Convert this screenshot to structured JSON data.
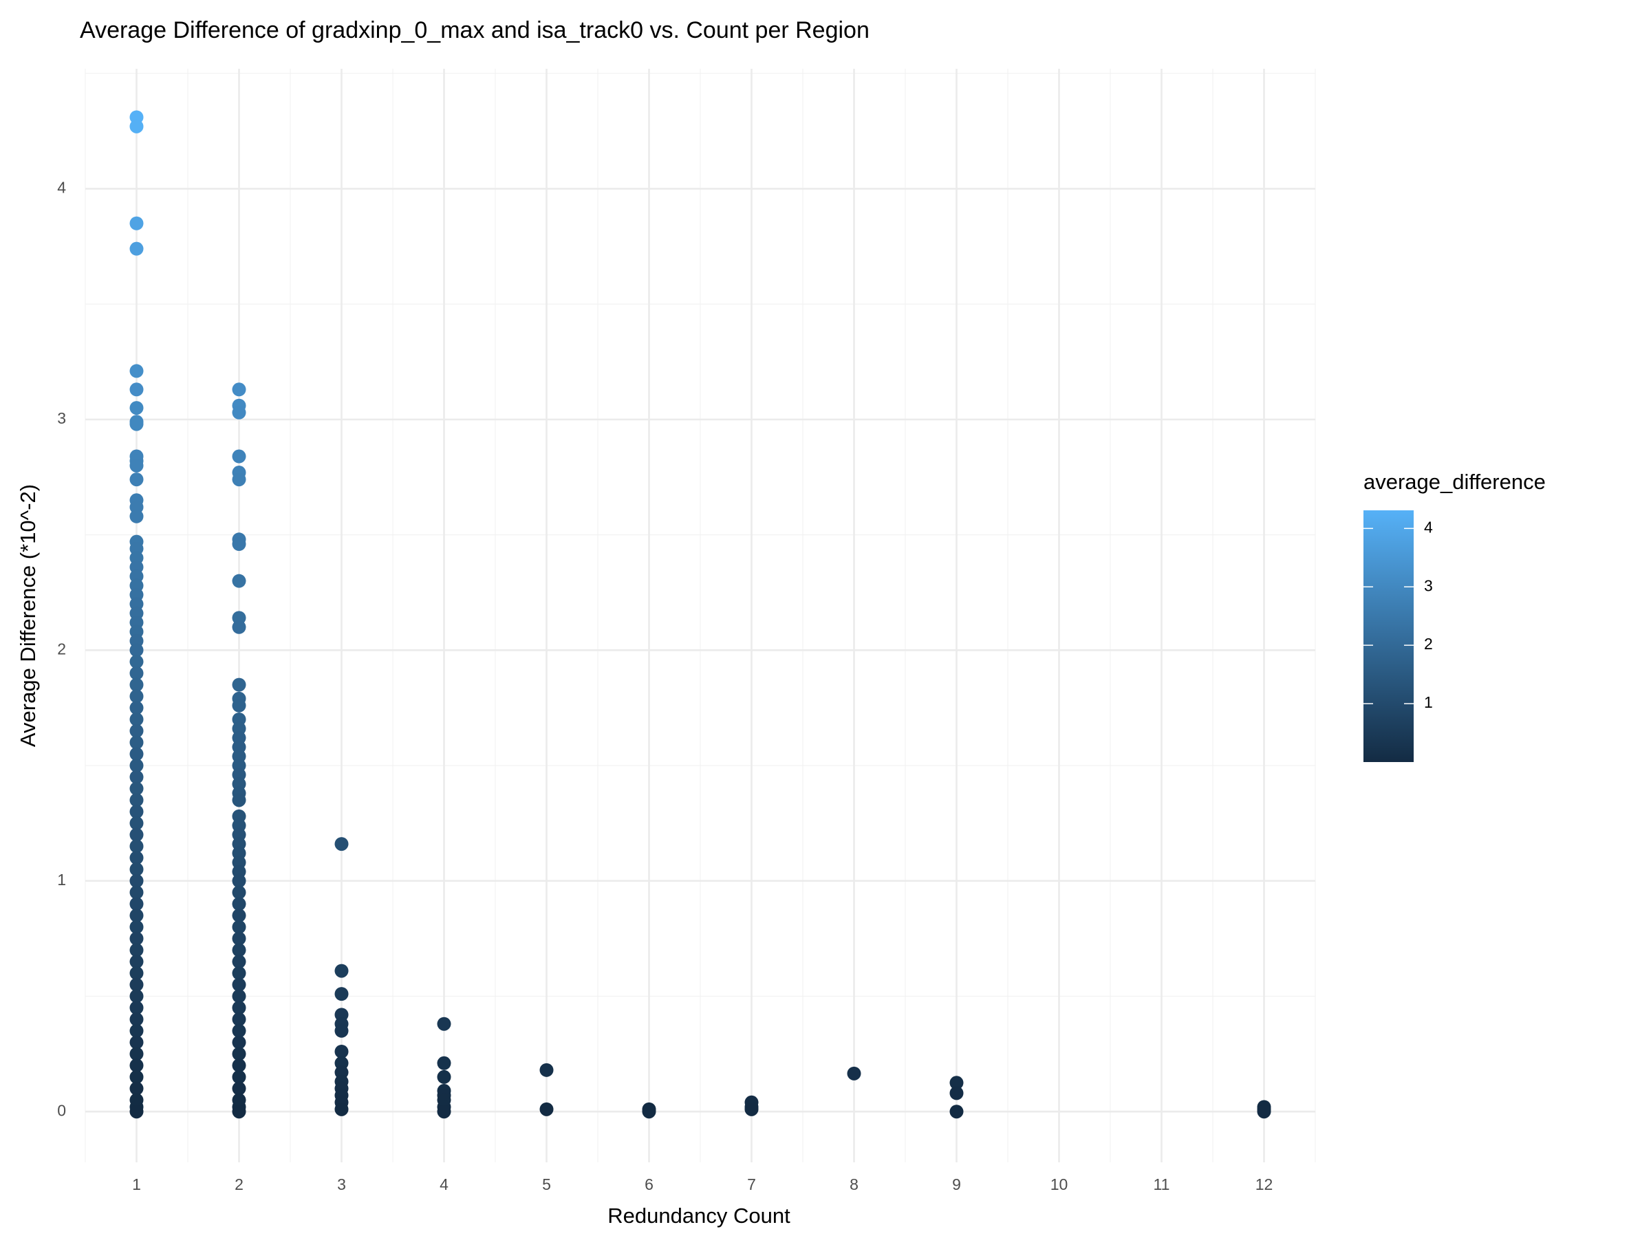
{
  "chart_data": {
    "type": "scatter",
    "title": "Average Difference of gradxinp_0_max and isa_track0 vs. Count per Region",
    "x_label": "Redundancy Count",
    "y_label": "Average Difference (*10^-2)",
    "xlim": [
      0.5,
      12.5
    ],
    "ylim": [
      -0.22,
      4.52
    ],
    "xticks": [
      1,
      2,
      3,
      4,
      5,
      6,
      7,
      8,
      9,
      10,
      11,
      12
    ],
    "yticks": [
      0,
      1,
      2,
      3,
      4
    ],
    "minor_xticks": [
      0.5,
      1.5,
      2.5,
      3.5,
      4.5,
      5.5,
      6.5,
      7.5,
      8.5,
      9.5,
      10.5,
      11.5,
      12.5
    ],
    "minor_yticks": [
      0.5,
      1.5,
      2.5,
      3.5,
      4.5
    ],
    "grid": true,
    "color_scale": {
      "title": "average_difference",
      "low": "#132B43",
      "high": "#56B1F7",
      "limits": [
        0,
        4.31
      ],
      "ticks": [
        1,
        2,
        3,
        4
      ]
    },
    "series": [
      {
        "x": 1,
        "values": [
          4.31,
          4.27,
          3.85,
          3.74,
          3.21,
          3.13,
          3.05,
          2.99,
          2.98,
          2.84,
          2.82,
          2.8,
          2.74,
          2.65,
          2.62,
          2.58,
          2.47,
          2.44,
          2.4,
          2.36,
          2.32,
          2.28,
          2.24,
          2.2,
          2.16,
          2.12,
          2.08,
          2.04,
          2,
          1.95,
          1.9,
          1.85,
          1.8,
          1.75,
          1.7,
          1.65,
          1.6,
          1.55,
          1.5,
          1.45,
          1.4,
          1.35,
          1.3,
          1.25,
          1.2,
          1.15,
          1.1,
          1.05,
          1,
          0.95,
          0.9,
          0.85,
          0.8,
          0.75,
          0.7,
          0.65,
          0.6,
          0.55,
          0.5,
          0.45,
          0.4,
          0.35,
          0.3,
          0.25,
          0.2,
          0.15,
          0.1,
          0.05,
          0.02,
          0
        ]
      },
      {
        "x": 2,
        "values": [
          3.13,
          3.06,
          3.03,
          2.84,
          2.77,
          2.74,
          2.48,
          2.46,
          2.3,
          2.14,
          2.1,
          1.85,
          1.79,
          1.76,
          1.7,
          1.66,
          1.62,
          1.58,
          1.54,
          1.5,
          1.46,
          1.42,
          1.38,
          1.35,
          1.28,
          1.24,
          1.2,
          1.16,
          1.12,
          1.08,
          1.04,
          1,
          0.95,
          0.9,
          0.85,
          0.8,
          0.75,
          0.7,
          0.65,
          0.6,
          0.55,
          0.5,
          0.45,
          0.4,
          0.35,
          0.3,
          0.25,
          0.2,
          0.15,
          0.1,
          0.05,
          0.02,
          0
        ]
      },
      {
        "x": 3,
        "values": [
          1.16,
          0.61,
          0.51,
          0.42,
          0.38,
          0.35,
          0.26,
          0.21,
          0.17,
          0.13,
          0.1,
          0.07,
          0.04,
          0.01
        ]
      },
      {
        "x": 4,
        "values": [
          0.38,
          0.21,
          0.15,
          0.09,
          0.07,
          0.05,
          0.02,
          0
        ]
      },
      {
        "x": 5,
        "values": [
          0.18,
          0.01
        ]
      },
      {
        "x": 6,
        "values": [
          0.01,
          0
        ]
      },
      {
        "x": 7,
        "values": [
          0.04,
          0.02,
          0.01
        ]
      },
      {
        "x": 8,
        "values": [
          0.165
        ]
      },
      {
        "x": 9,
        "values": [
          0.125,
          0.08,
          0
        ]
      },
      {
        "x": 12,
        "values": [
          0.02,
          0.01,
          0
        ]
      }
    ]
  }
}
